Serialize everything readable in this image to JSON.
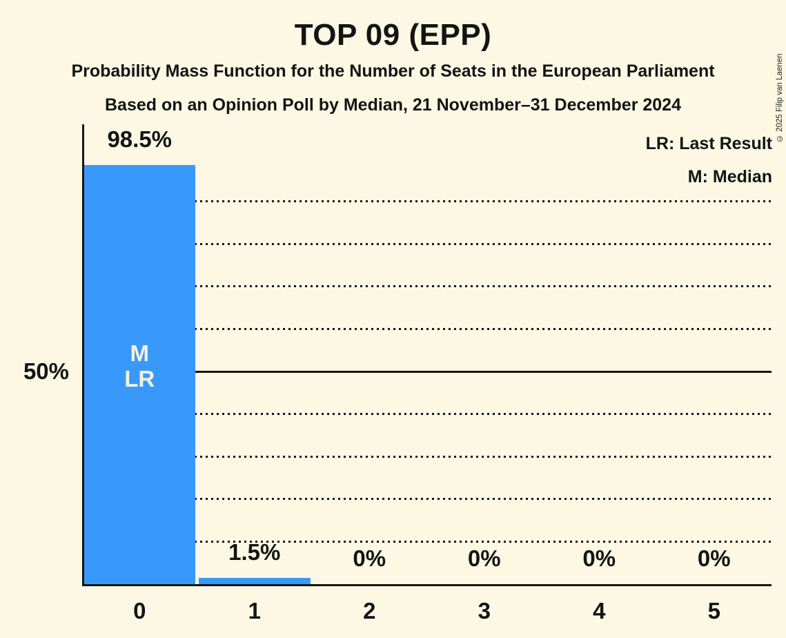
{
  "title": "TOP 09 (EPP)",
  "subtitle1": "Probability Mass Function for the Number of Seats in the European Parliament",
  "subtitle2": "Based on an Opinion Poll by Median, 21 November–31 December 2024",
  "legend": {
    "lr": "LR: Last Result",
    "m": "M: Median"
  },
  "copyright": "© 2025 Filip van Laenen",
  "y_axis_label": "50%",
  "colors": {
    "background": "#FCF8E3",
    "bar": "#3999FA",
    "text": "#141414",
    "bar_label_text": "#F6F2DE"
  },
  "chart_data": {
    "type": "bar",
    "title": "TOP 09 (EPP)",
    "categories": [
      "0",
      "1",
      "2",
      "3",
      "4",
      "5"
    ],
    "values": [
      98.5,
      1.5,
      0,
      0,
      0,
      0
    ],
    "value_labels": [
      "98.5%",
      "1.5%",
      "0%",
      "0%",
      "0%",
      "0%"
    ],
    "bar_annotations": [
      [
        "M",
        "LR"
      ],
      [],
      [],
      [],
      [],
      []
    ],
    "xlabel": "",
    "ylabel": "",
    "ylim": [
      0,
      100
    ],
    "y_reference_line_pct": 50,
    "gridlines": [
      {
        "pct": 10,
        "style": "dotted"
      },
      {
        "pct": 20,
        "style": "dotted"
      },
      {
        "pct": 30,
        "style": "dotted"
      },
      {
        "pct": 40,
        "style": "dotted"
      },
      {
        "pct": 50,
        "style": "solid"
      },
      {
        "pct": 60,
        "style": "dotted"
      },
      {
        "pct": 70,
        "style": "dotted"
      },
      {
        "pct": 80,
        "style": "dotted"
      },
      {
        "pct": 90,
        "style": "dotted"
      }
    ],
    "legend_position": "top-right",
    "annotation_legend": {
      "LR": "Last Result",
      "M": "Median"
    }
  }
}
